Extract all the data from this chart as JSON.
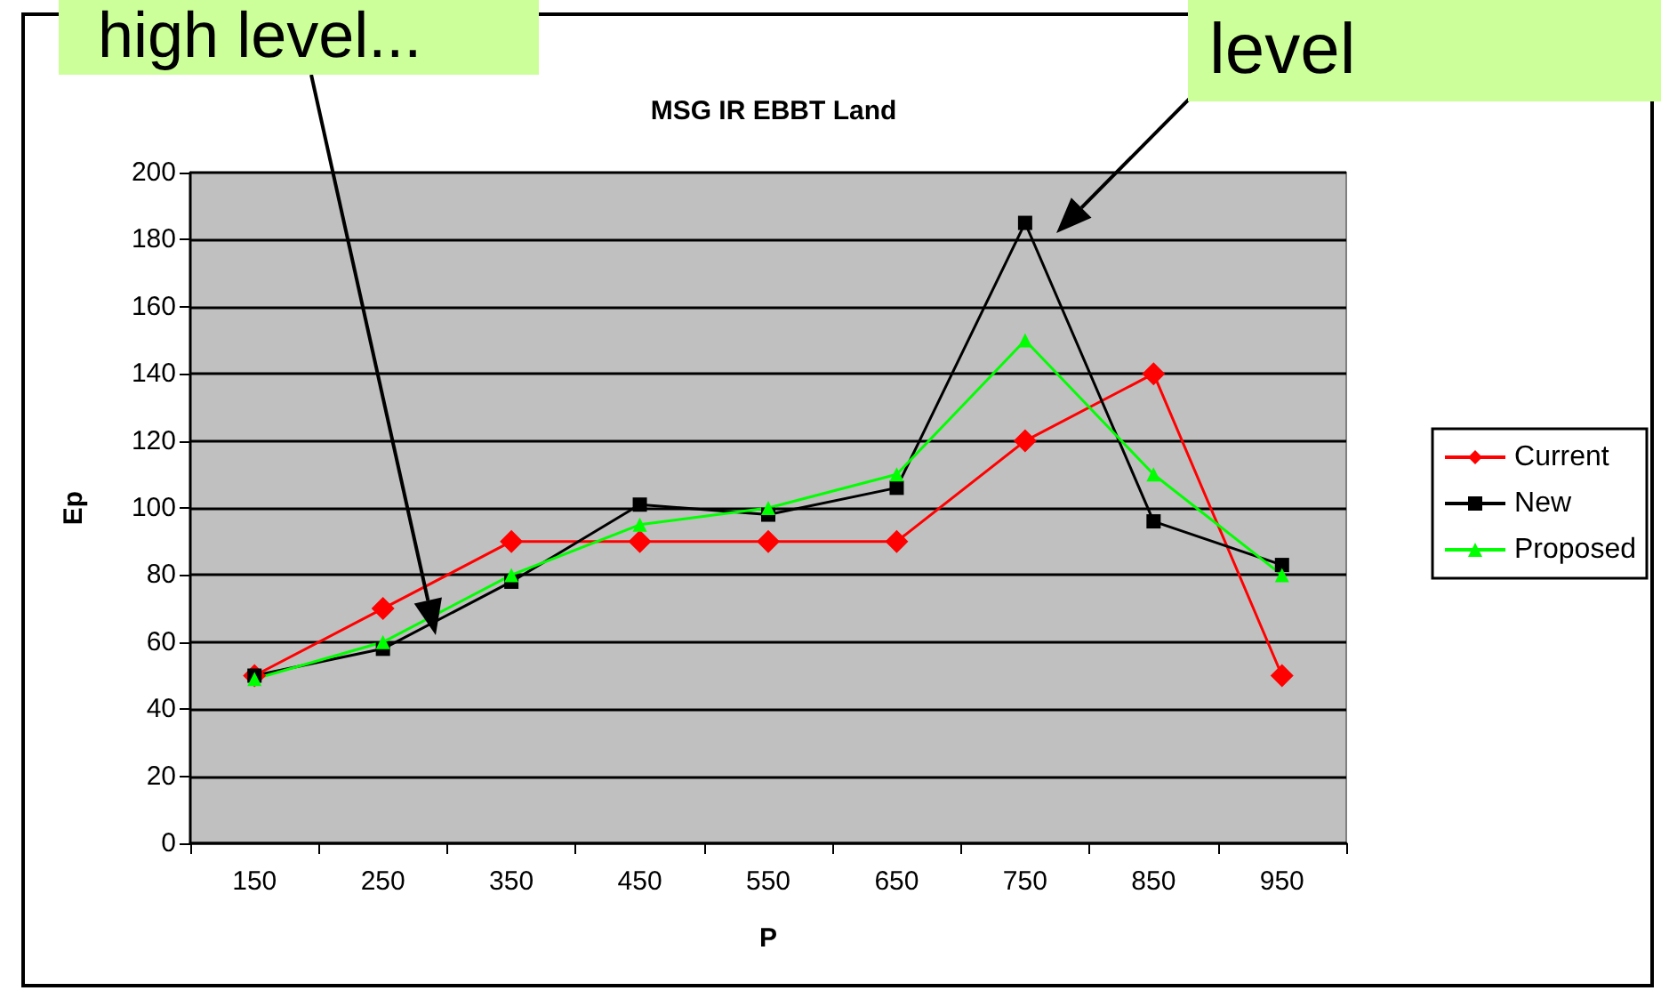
{
  "chart_data": {
    "type": "line",
    "title": "MSG IR EBBT Land",
    "xlabel": "P",
    "ylabel": "Ep",
    "annotations": [
      "high level...",
      "level"
    ],
    "categories": [
      "150",
      "250",
      "350",
      "450",
      "550",
      "650",
      "750",
      "850",
      "950"
    ],
    "series": [
      {
        "name": "Current",
        "color": "#ff0000",
        "marker": "diamond",
        "values": [
          50,
          70,
          90,
          90,
          90,
          90,
          120,
          140,
          50
        ]
      },
      {
        "name": "New",
        "color": "#000000",
        "marker": "square",
        "values": [
          50,
          58,
          78,
          101,
          98,
          106,
          185,
          96,
          83
        ]
      },
      {
        "name": "Proposed",
        "color": "#00ff00",
        "marker": "triangle",
        "values": [
          49,
          60,
          80,
          95,
          100,
          110,
          150,
          110,
          80
        ]
      }
    ],
    "ylim": [
      0,
      200
    ],
    "yticks": [
      0,
      20,
      40,
      60,
      80,
      100,
      120,
      140,
      160,
      180,
      200
    ],
    "grid": "y",
    "legend": "right",
    "line_style": "solid"
  }
}
